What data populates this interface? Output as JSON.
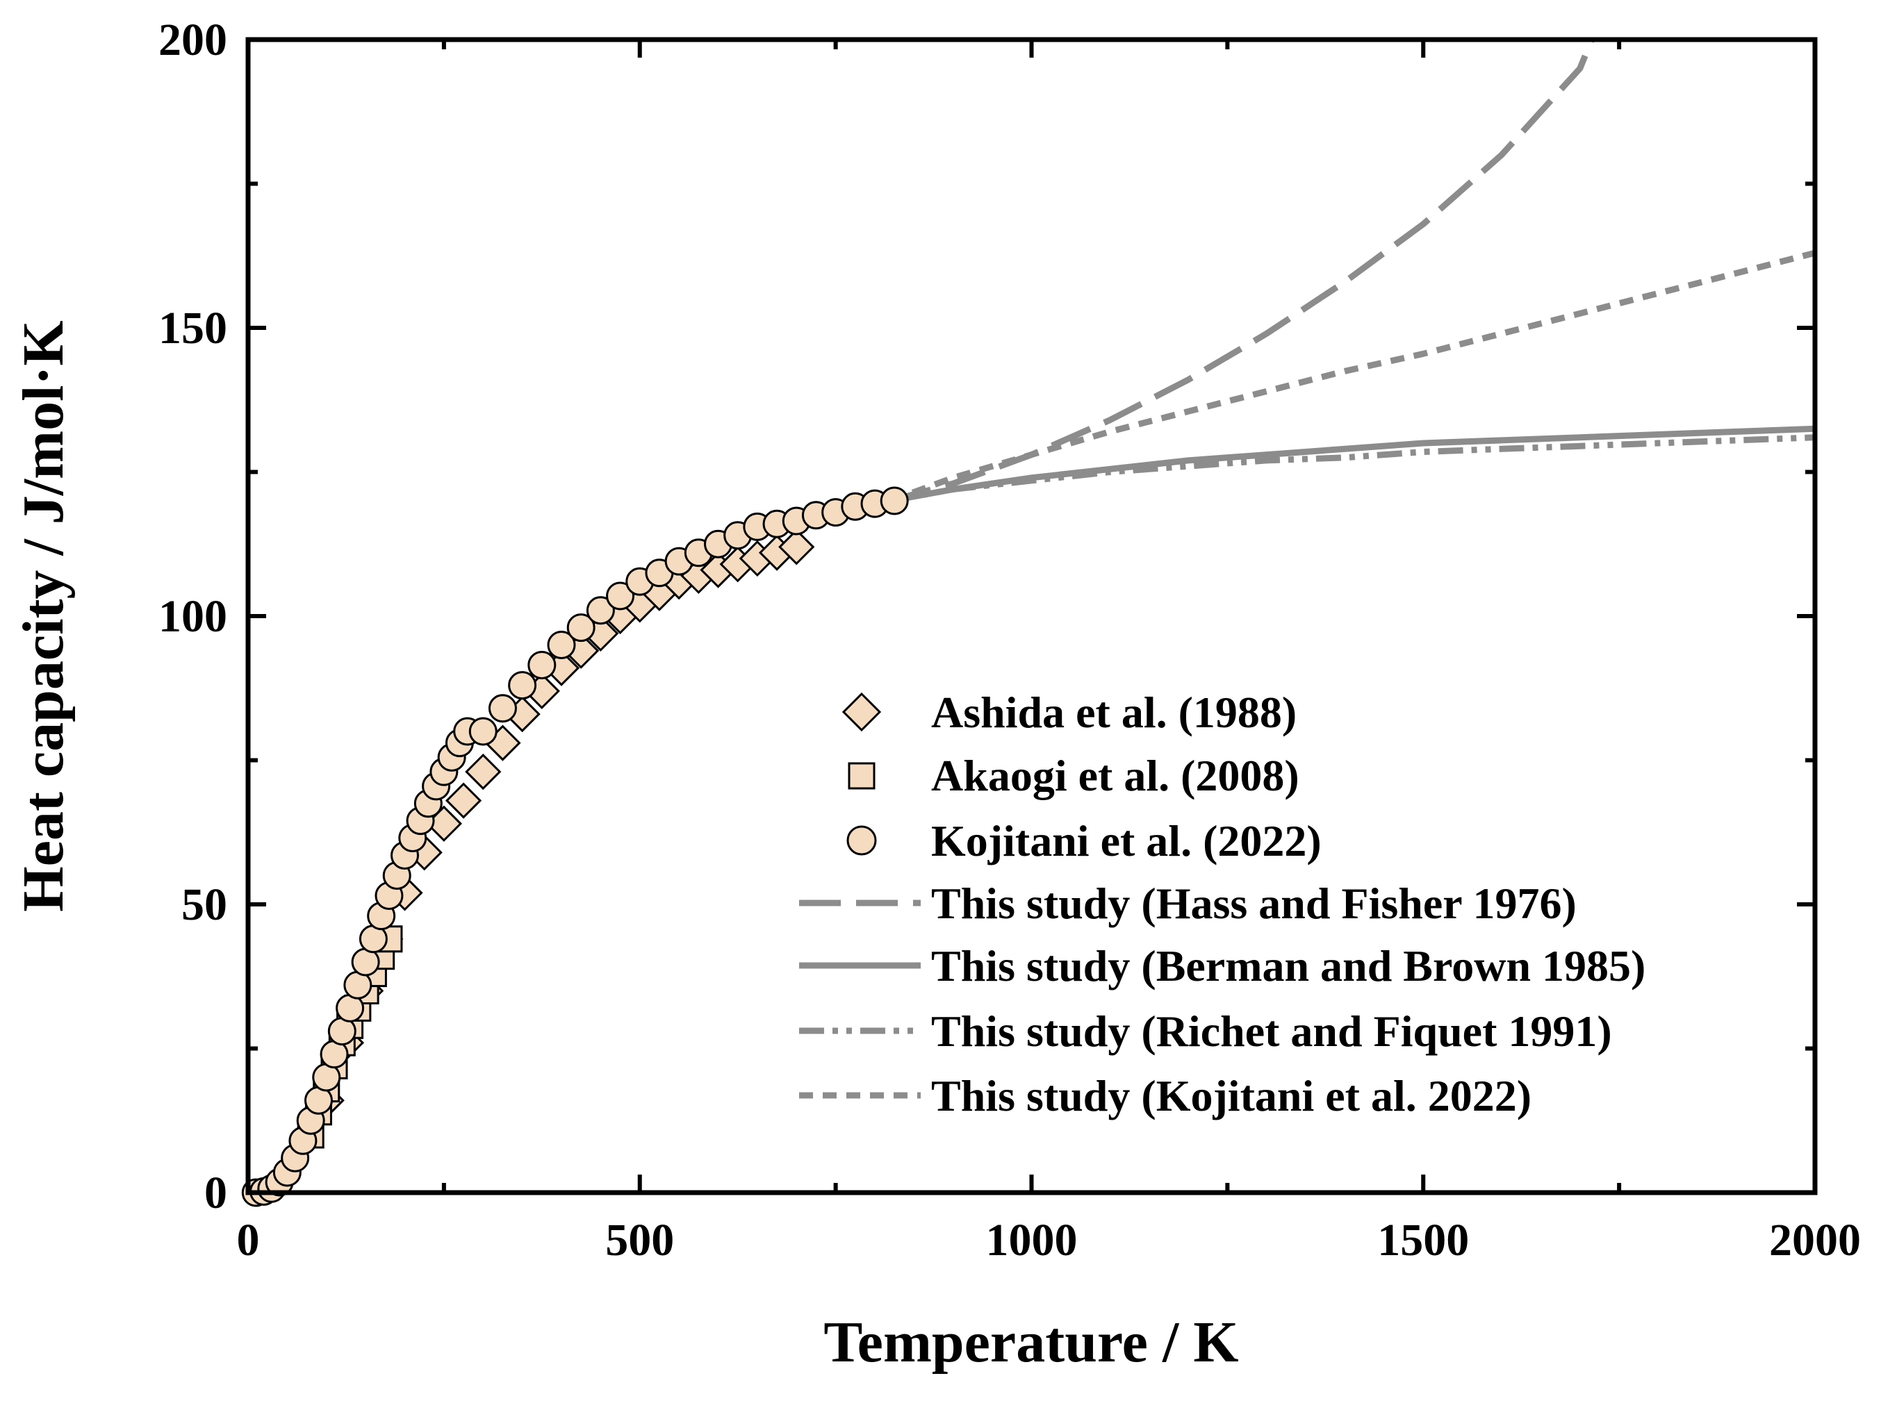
{
  "chart_data": {
    "type": "scatter",
    "title": "",
    "xlabel": "Temperature / K",
    "ylabel": "Heat capacity / J/mol·K",
    "xlim": [
      0,
      2000
    ],
    "ylim": [
      0,
      200
    ],
    "xticks": [
      0,
      500,
      1000,
      1500,
      2000
    ],
    "yticks": [
      0,
      50,
      100,
      150,
      200
    ],
    "grid": false,
    "legend_position": "lower-right",
    "colors": {
      "marker_fill": "#f5dcc0",
      "marker_edge": "#000000",
      "line": "#8c8c8c",
      "axis": "#000000"
    },
    "series": [
      {
        "name": "Ashida et al. (1988)",
        "kind": "scatter",
        "marker": "diamond",
        "x": [
          100,
          125,
          150,
          175,
          200,
          225,
          250,
          275,
          300,
          325,
          350,
          375,
          400,
          425,
          450,
          475,
          500,
          525,
          550,
          575,
          600,
          625,
          650,
          675,
          700
        ],
        "y": [
          16,
          26,
          35,
          44,
          52,
          59,
          64,
          68,
          73,
          78,
          83,
          87,
          91,
          94,
          97,
          100,
          102,
          104,
          106,
          107,
          108,
          109,
          110,
          111,
          112
        ]
      },
      {
        "name": "Akaogi et al. (2008)",
        "kind": "scatter",
        "marker": "square",
        "x": [
          80,
          90,
          100,
          110,
          120,
          130,
          140,
          150,
          160,
          170,
          180
        ],
        "y": [
          10,
          14,
          18,
          22,
          26,
          29,
          32,
          35,
          38,
          41,
          44
        ]
      },
      {
        "name": "Kojitani et al. (2022)",
        "kind": "scatter",
        "marker": "circle",
        "x": [
          10,
          20,
          30,
          40,
          50,
          60,
          70,
          80,
          90,
          100,
          110,
          120,
          130,
          140,
          150,
          160,
          170,
          180,
          190,
          200,
          210,
          220,
          230,
          240,
          250,
          260,
          270,
          280,
          300,
          325,
          350,
          375,
          400,
          425,
          450,
          475,
          500,
          525,
          550,
          575,
          600,
          625,
          650,
          675,
          700,
          725,
          750,
          775,
          800,
          825
        ],
        "y": [
          0,
          0.2,
          0.7,
          1.8,
          3.5,
          6,
          9,
          12.5,
          16,
          20,
          24,
          28,
          32,
          36,
          40,
          44,
          48,
          51.5,
          55,
          58.5,
          61.5,
          64.5,
          67.5,
          70.5,
          73,
          75.5,
          78,
          80,
          80,
          84,
          88,
          91.5,
          95,
          98,
          101,
          103.5,
          106,
          107.5,
          109.5,
          111,
          112.5,
          114,
          115.5,
          116,
          116.5,
          117.5,
          118,
          119,
          119.5,
          120
        ]
      },
      {
        "name": "This study (Hass and Fisher 1976)",
        "kind": "line",
        "dash": "dashed",
        "x": [
          820,
          900,
          1000,
          1100,
          1200,
          1300,
          1400,
          1500,
          1600,
          1700,
          1715
        ],
        "y": [
          120,
          123,
          128,
          134,
          141,
          149,
          158,
          168,
          180,
          195,
          200
        ]
      },
      {
        "name": "This study (Berman and Brown 1985)",
        "kind": "line",
        "dash": "solid",
        "x": [
          820,
          900,
          1000,
          1100,
          1200,
          1300,
          1400,
          1500,
          1600,
          1700,
          1800,
          1900,
          2000
        ],
        "y": [
          120,
          122,
          124,
          125.5,
          127,
          128,
          129,
          130,
          130.5,
          131,
          131.5,
          132,
          132.5
        ]
      },
      {
        "name": "This study (Richet and Fiquet 1991)",
        "kind": "line",
        "dash": "dash-dot-dot",
        "x": [
          820,
          900,
          1000,
          1100,
          1200,
          1300,
          1400,
          1500,
          1600,
          1700,
          1800,
          1900,
          2000
        ],
        "y": [
          120,
          122,
          123.5,
          125,
          126,
          127,
          127.5,
          128.5,
          129,
          129.5,
          130,
          130.5,
          131
        ]
      },
      {
        "name": "This study (Kojitani et al. 2022)",
        "kind": "line",
        "dash": "short-dash",
        "x": [
          820,
          900,
          1000,
          1100,
          1200,
          1300,
          1400,
          1500,
          1600,
          1700,
          1800,
          1900,
          2000
        ],
        "y": [
          120,
          124,
          128,
          132,
          135.5,
          139,
          142.5,
          145.5,
          149,
          152.5,
          156,
          159.5,
          163
        ]
      }
    ]
  }
}
